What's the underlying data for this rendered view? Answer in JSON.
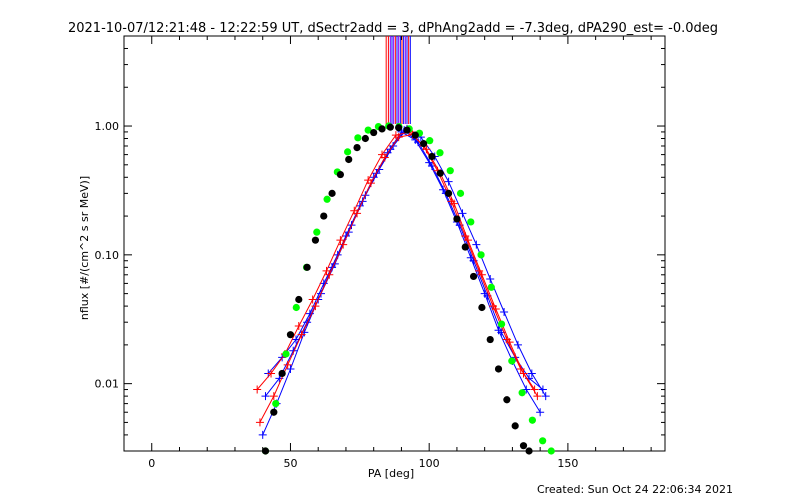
{
  "chart_data": {
    "type": "line",
    "title": "2021-10-07/12:21:48 - 12:22:59 UT, dSectr2add = 3, dPhAng2add = -7.3deg, dPA290_est= -0.0deg",
    "xlabel": "PA [deg]",
    "ylabel": "nflux [#/(cm^2 s sr MeV)]",
    "footer": "Created: Sun Oct 24 22:06:34 2021",
    "xlim": [
      -10,
      185
    ],
    "ylim": [
      0.003,
      5.0
    ],
    "yscale": "log",
    "x_ticks": [
      0,
      50,
      100,
      150
    ],
    "x_tick_labels": [
      "0",
      "50",
      "100",
      "150"
    ],
    "y_ticks": [
      0.01,
      0.1,
      1.0
    ],
    "y_tick_labels": [
      "0.01",
      "0.10",
      "1.00"
    ],
    "grid": false,
    "colors": {
      "red": "#ff0000",
      "blue": "#0000ff",
      "black": "#000000",
      "green": "#00ff00",
      "purple": "#7f00ff"
    },
    "series": [
      {
        "color": "green",
        "marker": "filled-circle",
        "x": [
          41.0,
          44.7,
          48.4,
          52.1,
          55.8,
          59.5,
          63.2,
          66.9,
          70.6,
          74.3,
          78.0,
          81.7,
          85.4,
          89.1,
          92.8,
          96.5,
          100.2,
          103.9,
          107.6,
          111.3,
          115.0,
          118.7,
          122.4,
          126.1,
          129.8,
          133.5,
          137.2,
          140.9,
          144.0
        ],
        "y": [
          0.003,
          0.007,
          0.017,
          0.039,
          0.08,
          0.15,
          0.27,
          0.44,
          0.63,
          0.81,
          0.93,
          0.99,
          1.0,
          0.99,
          0.95,
          0.88,
          0.77,
          0.62,
          0.45,
          0.3,
          0.18,
          0.1,
          0.056,
          0.029,
          0.015,
          0.0085,
          0.0052,
          0.0036,
          0.003
        ]
      },
      {
        "color": "black",
        "marker": "filled-circle",
        "x": [
          41.0,
          44.0,
          47.0,
          50.0,
          53.0,
          56.0,
          59.0,
          62.0,
          65.0,
          68.0,
          71.0,
          74.0,
          77.0,
          80.0,
          83.0,
          86.0,
          89.0,
          92.0,
          95.0,
          98.0,
          101.0,
          104.0,
          107.0,
          110.0,
          113.0,
          116.0,
          119.0,
          122.0,
          125.0,
          128.0,
          131.0,
          134.0,
          136.0
        ],
        "y": [
          0.003,
          0.006,
          0.012,
          0.024,
          0.045,
          0.08,
          0.13,
          0.2,
          0.3,
          0.42,
          0.55,
          0.68,
          0.8,
          0.89,
          0.95,
          0.98,
          0.97,
          0.93,
          0.85,
          0.73,
          0.58,
          0.43,
          0.3,
          0.19,
          0.115,
          0.068,
          0.039,
          0.022,
          0.013,
          0.0075,
          0.0047,
          0.0033,
          0.003
        ]
      },
      {
        "color": "blue",
        "marker": "plus",
        "x": [
          40,
          45,
          50,
          55,
          60,
          65,
          70,
          75,
          80,
          85,
          90,
          95,
          100,
          105,
          110,
          115,
          120,
          125,
          130,
          135,
          140
        ],
        "y": [
          0.004,
          0.007,
          0.013,
          0.025,
          0.045,
          0.08,
          0.14,
          0.24,
          0.4,
          0.62,
          0.9,
          0.78,
          0.52,
          0.32,
          0.18,
          0.095,
          0.05,
          0.026,
          0.015,
          0.009,
          0.006
        ]
      },
      {
        "color": "blue",
        "marker": "plus",
        "x": [
          42,
          47,
          52,
          57,
          62,
          67,
          72,
          77,
          82,
          87,
          92,
          97,
          102,
          107,
          112,
          117,
          122,
          127,
          132,
          137,
          142
        ],
        "y": [
          0.012,
          0.016,
          0.022,
          0.035,
          0.06,
          0.1,
          0.17,
          0.29,
          0.46,
          0.7,
          0.95,
          0.82,
          0.58,
          0.37,
          0.21,
          0.12,
          0.065,
          0.036,
          0.02,
          0.012,
          0.008
        ]
      },
      {
        "color": "blue",
        "marker": "plus",
        "x": [
          41,
          46,
          51,
          56,
          61,
          66,
          71,
          76,
          81,
          86,
          91,
          96,
          101,
          106,
          111,
          116,
          121,
          126,
          131,
          136,
          141
        ],
        "y": [
          0.008,
          0.011,
          0.018,
          0.03,
          0.05,
          0.085,
          0.15,
          0.26,
          0.43,
          0.66,
          0.93,
          0.75,
          0.49,
          0.3,
          0.17,
          0.09,
          0.048,
          0.025,
          0.016,
          0.011,
          0.009
        ]
      },
      {
        "color": "red",
        "marker": "plus",
        "x": [
          38,
          43,
          48,
          53,
          58,
          63,
          68,
          73,
          78,
          83,
          88,
          93,
          98,
          103,
          108,
          113,
          118,
          123,
          128,
          133,
          138
        ],
        "y": [
          0.009,
          0.012,
          0.017,
          0.028,
          0.045,
          0.075,
          0.13,
          0.22,
          0.38,
          0.6,
          0.85,
          0.9,
          0.7,
          0.45,
          0.26,
          0.14,
          0.075,
          0.04,
          0.022,
          0.013,
          0.009
        ]
      },
      {
        "color": "red",
        "marker": "plus",
        "x": [
          39,
          44,
          49,
          54,
          59,
          64,
          69,
          74,
          79,
          84,
          89,
          94,
          99,
          104,
          109,
          114,
          119,
          124,
          129,
          134,
          139
        ],
        "y": [
          0.005,
          0.008,
          0.014,
          0.024,
          0.04,
          0.07,
          0.12,
          0.21,
          0.36,
          0.57,
          0.82,
          0.86,
          0.66,
          0.43,
          0.25,
          0.13,
          0.07,
          0.038,
          0.021,
          0.012,
          0.008
        ]
      }
    ],
    "vertical_lines": [
      {
        "x": 84.5,
        "color": "red"
      },
      {
        "x": 85.3,
        "color": "red"
      },
      {
        "x": 86.0,
        "color": "purple"
      },
      {
        "x": 86.6,
        "color": "blue"
      },
      {
        "x": 87.2,
        "color": "purple"
      },
      {
        "x": 87.8,
        "color": "red"
      },
      {
        "x": 88.4,
        "color": "blue"
      },
      {
        "x": 89.0,
        "color": "purple"
      },
      {
        "x": 89.6,
        "color": "blue"
      },
      {
        "x": 90.2,
        "color": "red"
      },
      {
        "x": 90.8,
        "color": "blue"
      },
      {
        "x": 91.4,
        "color": "purple"
      },
      {
        "x": 92.0,
        "color": "blue"
      },
      {
        "x": 92.6,
        "color": "red"
      },
      {
        "x": 93.2,
        "color": "blue"
      }
    ]
  }
}
